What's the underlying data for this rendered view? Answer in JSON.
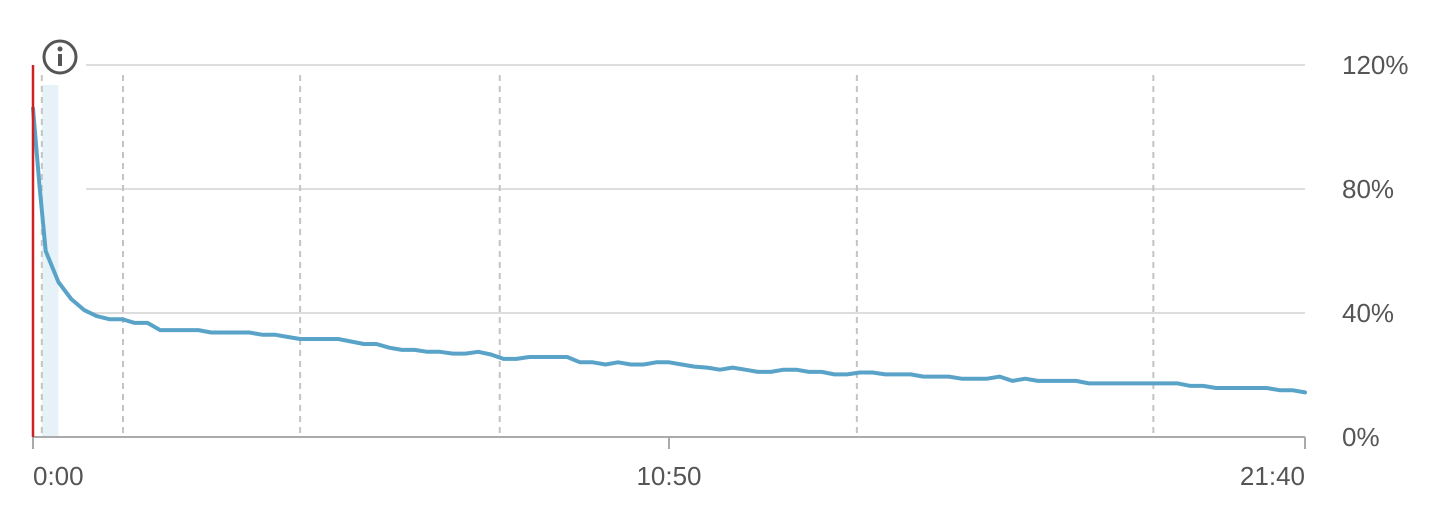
{
  "chart_data": {
    "type": "line",
    "title": "",
    "xlabel": "",
    "ylabel": "",
    "x_unit": "minutes",
    "xlim": [
      0,
      1300
    ],
    "ylim": [
      0,
      120
    ],
    "x_ticks": [
      {
        "value": 0,
        "label": "0:00"
      },
      {
        "value": 650,
        "label": "10:50"
      },
      {
        "value": 1300,
        "label": "21:40"
      }
    ],
    "y_ticks": [
      {
        "value": 0,
        "label": "0%"
      },
      {
        "value": 40,
        "label": "40%"
      },
      {
        "value": 80,
        "label": "80%"
      },
      {
        "value": 120,
        "label": "120%"
      }
    ],
    "grid": {
      "horizontal": true,
      "vertical": false
    },
    "marker_lines_dashed_x": [
      9,
      92,
      273,
      477,
      842,
      1145
    ],
    "highlight_band_x": [
      9,
      26
    ],
    "cursor_line_x": 0,
    "info_icon": "info-circle-icon",
    "colors": {
      "series": "#5aa3c8",
      "grid": "#dddddd",
      "axis": "#aaaaaa",
      "dashed": "#c4c4c4",
      "cursor": "#cc2222",
      "band": "#e6f2f8",
      "text": "#555555"
    },
    "series": [
      {
        "x": [
          0,
          7,
          13,
          26,
          39,
          52,
          65,
          78,
          91,
          104,
          117,
          130,
          143,
          156,
          169,
          182,
          195,
          208,
          221,
          234,
          247,
          260,
          273,
          286,
          299,
          312,
          325,
          338,
          351,
          364,
          377,
          390,
          403,
          416,
          429,
          442,
          455,
          468,
          481,
          494,
          507,
          520,
          533,
          546,
          559,
          572,
          585,
          598,
          611,
          624,
          637,
          650,
          663,
          676,
          689,
          702,
          715,
          728,
          741,
          754,
          767,
          780,
          793,
          806,
          819,
          832,
          845,
          858,
          871,
          884,
          897,
          910,
          923,
          936,
          949,
          962,
          975,
          988,
          1001,
          1014,
          1027,
          1040,
          1053,
          1066,
          1079,
          1092,
          1105,
          1118,
          1131,
          1144,
          1157,
          1170,
          1183,
          1196,
          1209,
          1222,
          1235,
          1248,
          1261,
          1274,
          1287,
          1300
        ],
        "values": [
          106,
          80,
          60,
          50,
          44.5,
          41,
          39,
          38,
          38,
          36.8,
          36.8,
          34.5,
          34.5,
          34.5,
          34.5,
          33.7,
          33.7,
          33.7,
          33.7,
          33,
          33,
          32.3,
          31.6,
          31.6,
          31.6,
          31.6,
          30.8,
          30,
          30,
          28.8,
          28.1,
          28.1,
          27.5,
          27.5,
          26.9,
          26.9,
          27.5,
          26.6,
          25.2,
          25.2,
          25.8,
          25.8,
          25.8,
          25.8,
          24.1,
          24.1,
          23.4,
          24.1,
          23.4,
          23.4,
          24.1,
          24.1,
          23.4,
          22.7,
          22.4,
          21.7,
          22.4,
          21.7,
          21,
          21,
          21.7,
          21.7,
          21,
          21,
          20.2,
          20.2,
          20.8,
          20.8,
          20.2,
          20.2,
          20.2,
          19.5,
          19.5,
          19.5,
          18.8,
          18.8,
          18.8,
          19.5,
          18.1,
          18.8,
          18.1,
          18.1,
          18.1,
          18.1,
          17.3,
          17.3,
          17.3,
          17.3,
          17.3,
          17.3,
          17.3,
          17.3,
          16.5,
          16.5,
          15.8,
          15.8,
          15.8,
          15.8,
          15.8,
          15.1,
          15.1,
          14.4
        ]
      }
    ]
  }
}
